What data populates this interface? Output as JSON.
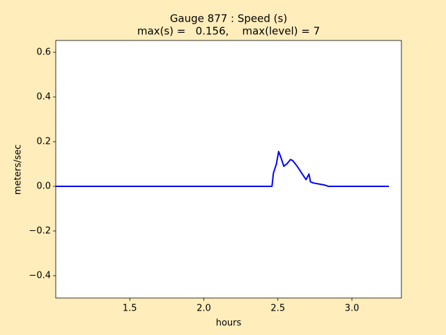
{
  "chart_data": {
    "type": "line",
    "title": "Gauge 877 : Speed (s)",
    "subtitle": "max(s) =   0.156,    max(level) = 7",
    "xlabel": "hours",
    "ylabel": "meters/sec",
    "x": [
      1.0,
      2.46,
      2.47,
      2.49,
      2.505,
      2.52,
      2.54,
      2.56,
      2.585,
      2.6,
      2.63,
      2.66,
      2.69,
      2.71,
      2.72,
      2.74,
      2.78,
      2.82,
      2.84,
      3.25
    ],
    "values": [
      0,
      0,
      0.06,
      0.1,
      0.156,
      0.13,
      0.09,
      0.1,
      0.12,
      0.115,
      0.09,
      0.06,
      0.03,
      0.055,
      0.02,
      0.015,
      0.01,
      0.005,
      0,
      0
    ],
    "color": "#0000ff",
    "xlim": [
      1.0,
      3.334
    ],
    "ylim": [
      -0.5,
      0.653
    ],
    "xticks": [
      1.5,
      {
        "value": 2,
        "label": "2.0"
      },
      2.5,
      {
        "value": 3,
        "label": "3.0"
      }
    ],
    "yticks": [
      {
        "value": -0.4,
        "label": "−0.4"
      },
      {
        "value": -0.2,
        "label": "−0.2"
      },
      {
        "value": 0,
        "label": "0.0"
      },
      0.2,
      0.4,
      0.6
    ],
    "grid": false
  }
}
